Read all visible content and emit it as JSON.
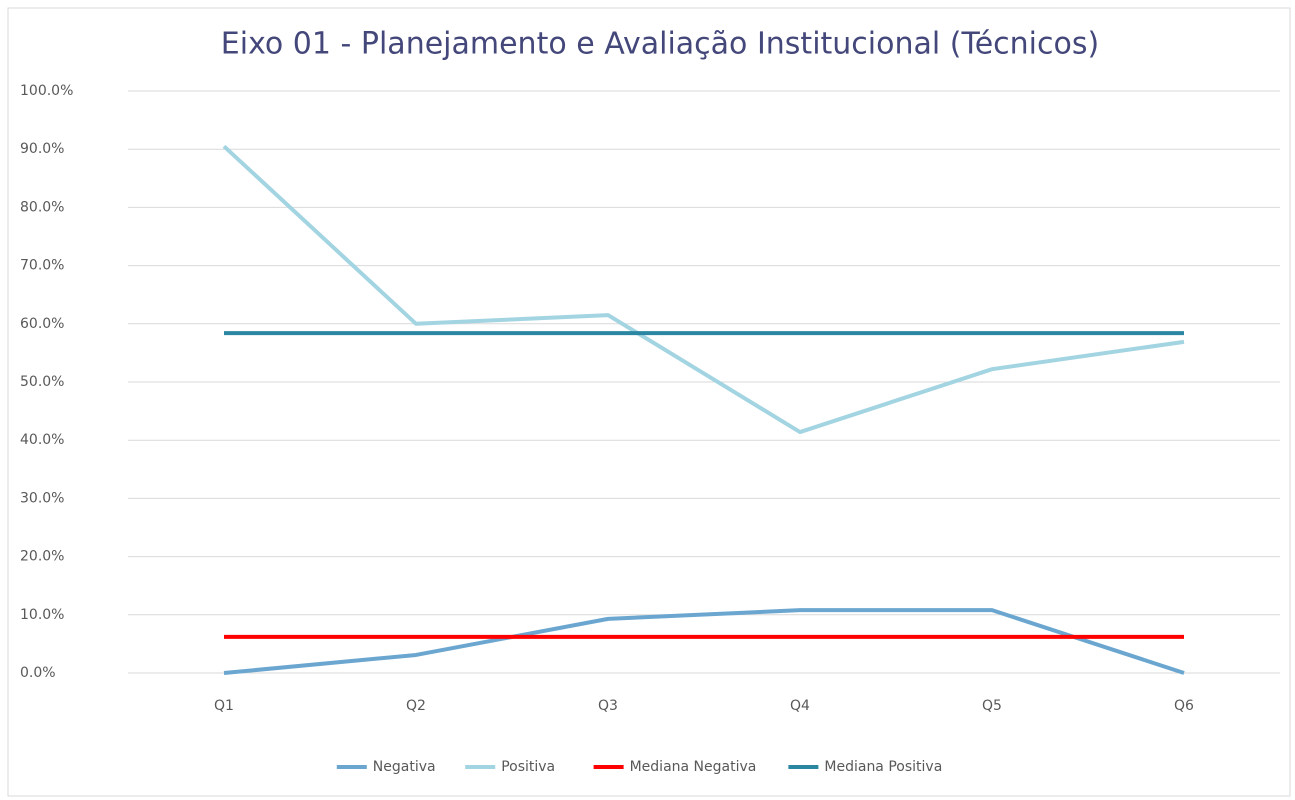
{
  "chart_data": {
    "type": "line",
    "title": "Eixo 01 - Planejamento e Avaliação Institucional (Técnicos)",
    "categories": [
      "Q1",
      "Q2",
      "Q3",
      "Q4",
      "Q5",
      "Q6"
    ],
    "series": [
      {
        "name": "Negativa",
        "color": "#6aa6cf",
        "values": [
          0,
          3.1,
          9.3,
          10.8,
          10.8,
          0
        ]
      },
      {
        "name": "Positiva",
        "color": "#a3d4e2",
        "values": [
          90.5,
          60.0,
          61.5,
          41.4,
          52.2,
          56.9
        ]
      },
      {
        "name": "Mediana Negativa",
        "color": "#ff0000",
        "values": [
          6.2,
          6.2,
          6.2,
          6.2,
          6.2,
          6.2
        ]
      },
      {
        "name": "Mediana Positiva",
        "color": "#2b86a2",
        "values": [
          58.4,
          58.4,
          58.4,
          58.4,
          58.4,
          58.4
        ]
      }
    ],
    "ylim": [
      0,
      100
    ],
    "yticks": [
      {
        "value": 0,
        "label": "0.0%"
      },
      {
        "value": 10,
        "label": "10.0%"
      },
      {
        "value": 20,
        "label": "20.0%"
      },
      {
        "value": 30,
        "label": "30.0%"
      },
      {
        "value": 40,
        "label": "40.0%"
      },
      {
        "value": 50,
        "label": "50.0%"
      },
      {
        "value": 60,
        "label": "60.0%"
      },
      {
        "value": 70,
        "label": "70.0%"
      },
      {
        "value": 80,
        "label": "80.0%"
      },
      {
        "value": 90,
        "label": "90.0%"
      },
      {
        "value": 100,
        "label": "100.0%"
      }
    ],
    "grid": true,
    "legend": "bottom"
  }
}
